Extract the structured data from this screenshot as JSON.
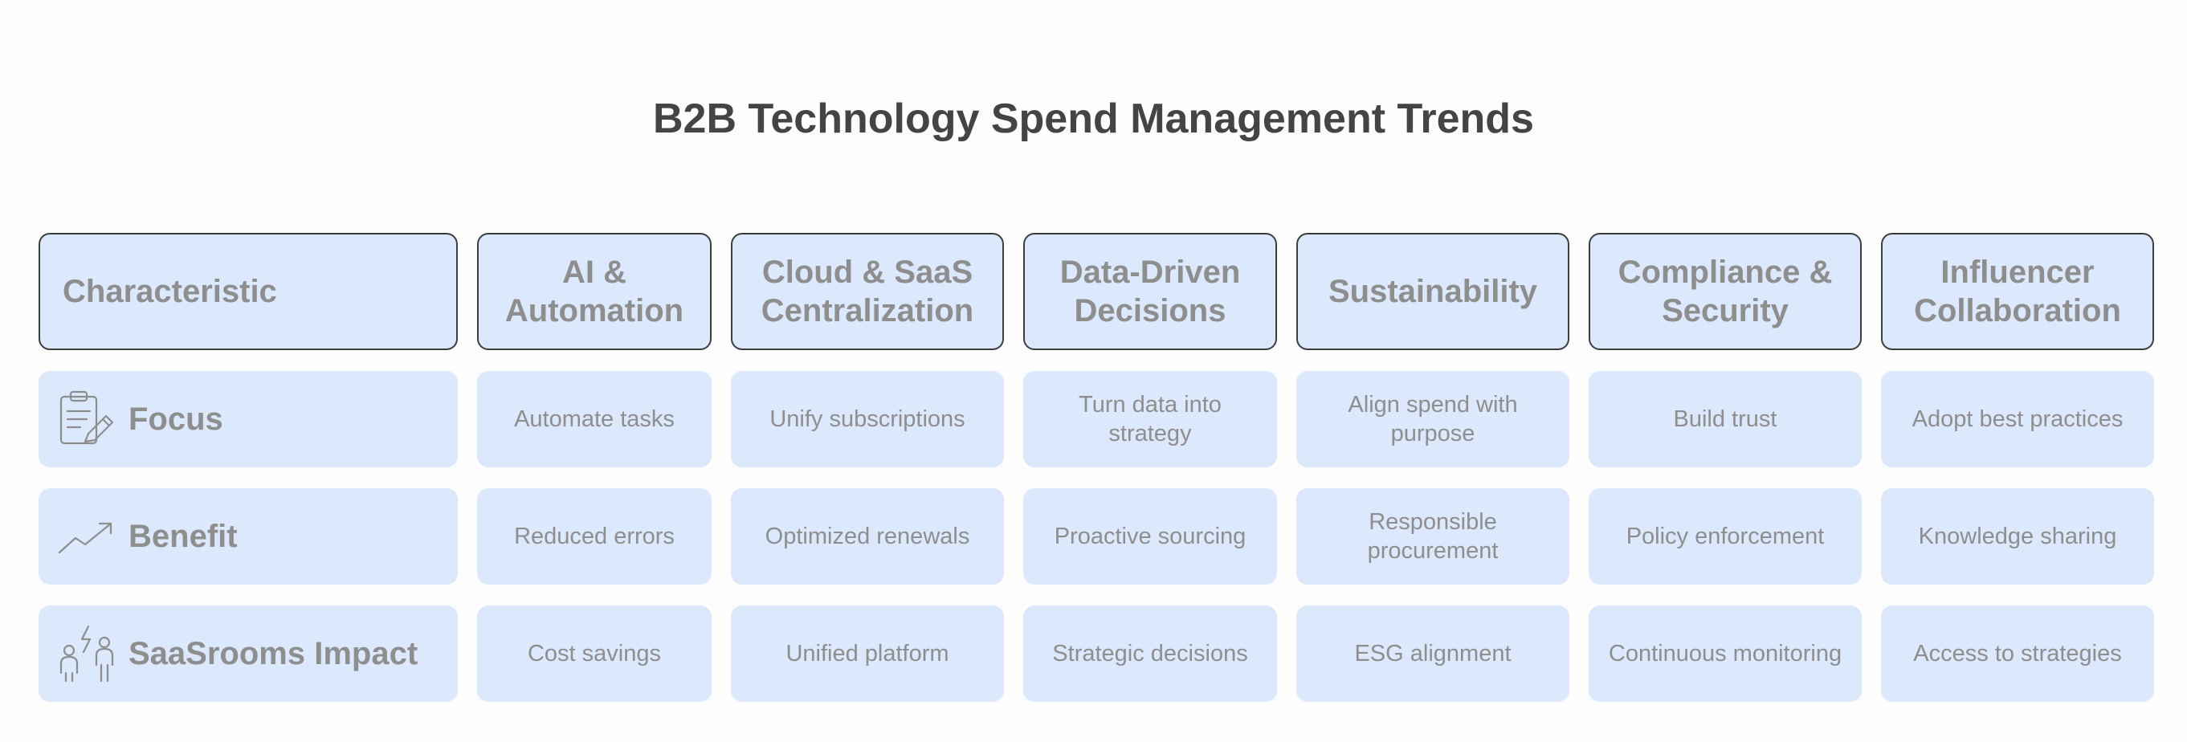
{
  "title": "B2B Technology Spend Management Trends",
  "colors": {
    "cell_fill": "#dce8fc",
    "header_border": "#3d3d3d",
    "text": "#8e8e8e",
    "title": "#444444"
  },
  "columns": [
    "Characteristic",
    "AI & Automation",
    "Cloud & SaaS Centralization",
    "Data-Driven Decisions",
    "Sustainability",
    "Compliance & Security",
    "Influencer Collaboration"
  ],
  "rows": [
    {
      "label": "Focus",
      "icon": "clipboard-pencil-icon",
      "cells": [
        "Automate tasks",
        "Unify subscriptions",
        "Turn data into strategy",
        "Align spend with purpose",
        "Build trust",
        "Adopt best practices"
      ]
    },
    {
      "label": "Benefit",
      "icon": "trending-up-icon",
      "cells": [
        "Reduced errors",
        "Optimized renewals",
        "Proactive sourcing",
        "Responsible procurement",
        "Policy enforcement",
        "Knowledge sharing"
      ]
    },
    {
      "label": "SaaSrooms Impact",
      "icon": "people-spark-icon",
      "cells": [
        "Cost savings",
        "Unified platform",
        "Strategic decisions",
        "ESG alignment",
        "Continuous monitoring",
        "Access to strategies"
      ]
    }
  ]
}
